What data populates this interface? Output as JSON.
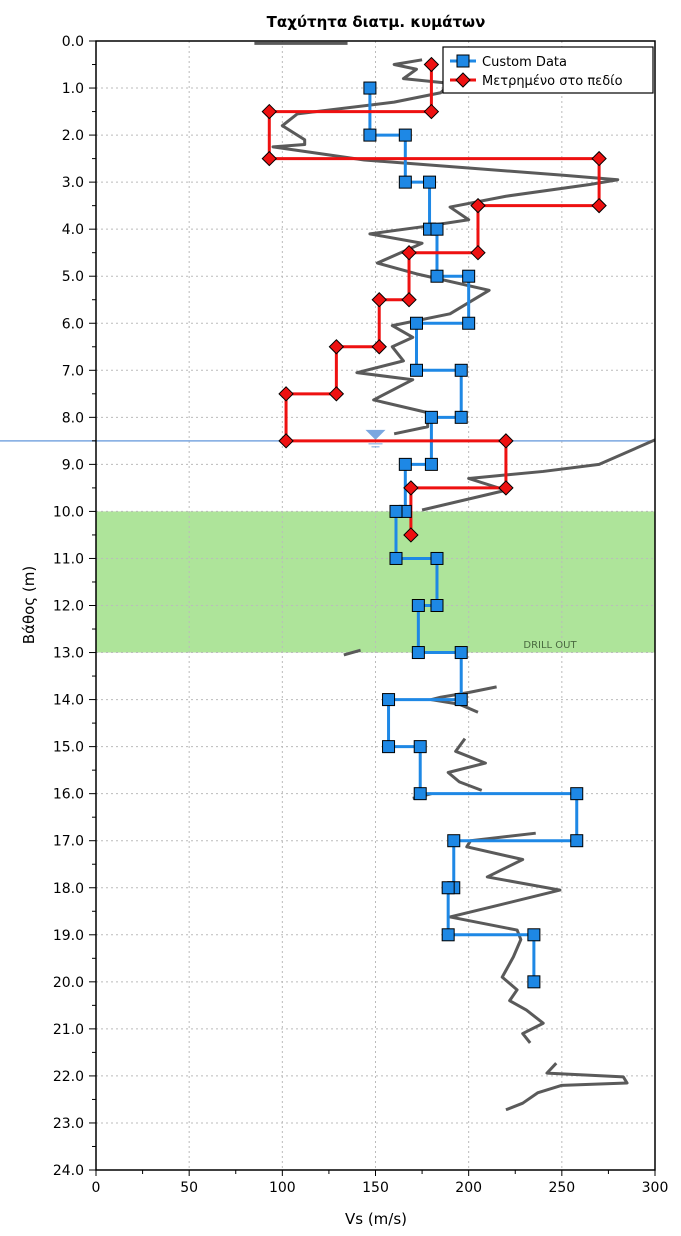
{
  "chart_data": {
    "type": "line",
    "title": "Ταχύτητα διατμ. κυμάτων",
    "xlabel": "Vs (m/s)",
    "ylabel": "Βάθος (m)",
    "xlim": [
      0,
      300
    ],
    "ylim": [
      0,
      24
    ],
    "y_inverted": true,
    "grid": true,
    "x_ticks": [
      "0",
      "50",
      "100",
      "150",
      "200",
      "250",
      "300"
    ],
    "y_ticks": [
      "0.0",
      "1.0",
      "2.0",
      "3.0",
      "4.0",
      "5.0",
      "6.0",
      "7.0",
      "8.0",
      "9.0",
      "10.0",
      "11.0",
      "12.0",
      "13.0",
      "14.0",
      "15.0",
      "16.0",
      "17.0",
      "18.0",
      "19.0",
      "20.0",
      "21.0",
      "22.0",
      "23.0",
      "24.0"
    ],
    "legend_position": "top-right",
    "series": [
      {
        "name": "Custom Data",
        "color": "#1e88e5",
        "marker": "square",
        "points": [
          [
            147,
            1.0
          ],
          [
            147,
            2.0
          ],
          [
            166,
            2.0
          ],
          [
            166,
            3.0
          ],
          [
            179,
            3.0
          ],
          [
            179,
            4.0
          ],
          [
            183,
            4.0
          ],
          [
            183,
            5.0
          ],
          [
            200,
            5.0
          ],
          [
            200,
            6.0
          ],
          [
            172,
            6.0
          ],
          [
            172,
            7.0
          ],
          [
            196,
            7.0
          ],
          [
            196,
            8.0
          ],
          [
            180,
            8.0
          ],
          [
            180,
            9.0
          ],
          [
            166,
            9.0
          ],
          [
            166,
            10.0
          ],
          [
            161,
            10.0
          ],
          [
            161,
            11.0
          ],
          [
            183,
            11.0
          ],
          [
            183,
            12.0
          ],
          [
            173,
            12.0
          ],
          [
            173,
            13.0
          ],
          [
            196,
            13.0
          ],
          [
            196,
            14.0
          ],
          [
            157,
            14.0
          ],
          [
            157,
            15.0
          ],
          [
            174,
            15.0
          ],
          [
            174,
            16.0
          ],
          [
            258,
            16.0
          ],
          [
            258,
            17.0
          ],
          [
            192,
            17.0
          ],
          [
            192,
            18.0
          ],
          [
            189,
            18.0
          ],
          [
            189,
            19.0
          ],
          [
            235,
            19.0
          ],
          [
            235,
            20.0
          ]
        ]
      },
      {
        "name": "Μετρημένο στο πεδίο",
        "color": "#ee1111",
        "marker": "diamond",
        "points": [
          [
            180,
            0.5
          ],
          [
            180,
            1.5
          ],
          [
            93,
            1.5
          ],
          [
            93,
            2.5
          ],
          [
            270,
            2.5
          ],
          [
            270,
            3.5
          ],
          [
            205,
            3.5
          ],
          [
            205,
            4.5
          ],
          [
            168,
            4.5
          ],
          [
            168,
            5.5
          ],
          [
            152,
            5.5
          ],
          [
            152,
            6.5
          ],
          [
            129,
            6.5
          ],
          [
            129,
            7.5
          ],
          [
            102,
            7.5
          ],
          [
            102,
            8.5
          ],
          [
            220,
            8.5
          ],
          [
            220,
            9.5
          ],
          [
            169,
            9.5
          ],
          [
            169,
            10.5
          ]
        ]
      },
      {
        "color": "#5a5a5a",
        "marker": "none",
        "segments": [
          [
            [
              85,
              0.05
            ],
            [
              135,
              0.05
            ]
          ],
          [
            [
              175,
              0.4
            ],
            [
              160,
              0.5
            ],
            [
              172,
              0.6
            ],
            [
              165,
              0.8
            ],
            [
              190,
              0.9
            ],
            [
              185,
              1.1
            ],
            [
              160,
              1.3
            ],
            [
              108,
              1.55
            ],
            [
              100,
              1.8
            ],
            [
              112,
              2.1
            ],
            [
              112,
              2.2
            ],
            [
              95,
              2.25
            ],
            [
              144,
              2.53
            ],
            [
              200,
              2.7
            ],
            [
              250,
              2.85
            ],
            [
              280,
              2.95
            ],
            [
              265,
              3.05
            ],
            [
              220,
              3.3
            ],
            [
              190,
              3.53
            ],
            [
              200,
              3.8
            ],
            [
              175,
              3.95
            ],
            [
              147,
              4.1
            ],
            [
              175,
              4.3
            ],
            [
              151,
              4.72
            ],
            [
              172,
              4.95
            ],
            [
              211,
              5.3
            ],
            [
              190,
              5.8
            ],
            [
              159,
              6.05
            ],
            [
              170,
              6.3
            ],
            [
              159,
              6.5
            ],
            [
              165,
              6.8
            ],
            [
              140,
              7.05
            ],
            [
              170,
              7.2
            ],
            [
              149,
              7.63
            ],
            [
              178,
              7.9
            ],
            [
              178,
              8.2
            ],
            [
              160,
              8.35
            ]
          ],
          [
            [
              300,
              8.48
            ],
            [
              270,
              9.0
            ],
            [
              240,
              9.15
            ],
            [
              200,
              9.3
            ],
            [
              220,
              9.55
            ],
            [
              175,
              9.97
            ]
          ],
          [
            [
              133,
              13.05
            ],
            [
              142,
              12.95
            ]
          ],
          [
            [
              215,
              13.73
            ],
            [
              200,
              13.85
            ],
            [
              185,
              13.95
            ],
            [
              180,
              14.0
            ],
            [
              195,
              14.1
            ],
            [
              205,
              14.27
            ]
          ],
          [
            [
              198,
              14.83
            ],
            [
              193,
              15.1
            ],
            [
              209,
              15.35
            ],
            [
              189,
              15.55
            ],
            [
              195,
              15.75
            ],
            [
              207,
              15.93
            ]
          ],
          [
            [
              170,
              16.1
            ],
            [
              180,
              16.0
            ]
          ],
          [
            [
              236,
              16.84
            ],
            [
              201,
              17.0
            ],
            [
              199,
              17.13
            ],
            [
              229,
              17.4
            ],
            [
              210,
              17.77
            ],
            [
              249,
              18.05
            ],
            [
              213,
              18.4
            ],
            [
              190,
              18.62
            ],
            [
              226,
              18.9
            ],
            [
              228,
              19.1
            ],
            [
              224,
              19.47
            ],
            [
              218,
              19.9
            ],
            [
              226,
              20.17
            ],
            [
              222,
              20.4
            ],
            [
              231,
              20.6
            ],
            [
              240,
              20.88
            ],
            [
              229,
              21.1
            ],
            [
              233,
              21.3
            ]
          ],
          [
            [
              247,
              21.73
            ],
            [
              242,
              21.94
            ],
            [
              283,
              22.02
            ],
            [
              285,
              22.15
            ],
            [
              250,
              22.2
            ],
            [
              237,
              22.36
            ],
            [
              229,
              22.58
            ],
            [
              220,
              22.72
            ]
          ]
        ]
      }
    ],
    "water_table": {
      "depth": 8.5,
      "marker_vs": 150,
      "color": "#7ba7e0"
    },
    "shaded_zone": {
      "from_depth": 10.0,
      "to_depth": 13.0,
      "label": "DRILL OUT",
      "color": "#aee49a"
    }
  }
}
